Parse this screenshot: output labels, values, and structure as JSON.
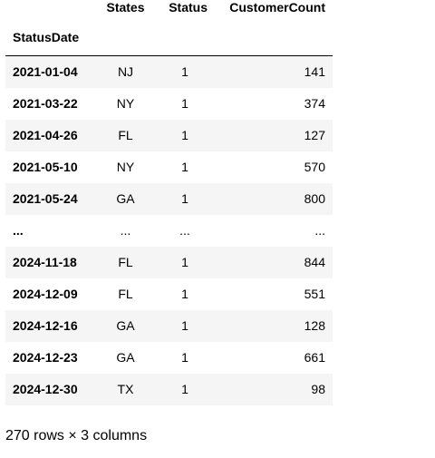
{
  "dataframe": {
    "columns": [
      "States",
      "Status",
      "CustomerCount"
    ],
    "index_name": "StatusDate",
    "rows": [
      {
        "index": "2021-01-04",
        "States": "NJ",
        "Status": "1",
        "CustomerCount": "141"
      },
      {
        "index": "2021-03-22",
        "States": "NY",
        "Status": "1",
        "CustomerCount": "374"
      },
      {
        "index": "2021-04-26",
        "States": "FL",
        "Status": "1",
        "CustomerCount": "127"
      },
      {
        "index": "2021-05-10",
        "States": "NY",
        "Status": "1",
        "CustomerCount": "570"
      },
      {
        "index": "2021-05-24",
        "States": "GA",
        "Status": "1",
        "CustomerCount": "800"
      },
      {
        "index": "...",
        "States": "...",
        "Status": "...",
        "CustomerCount": "..."
      },
      {
        "index": "2024-11-18",
        "States": "FL",
        "Status": "1",
        "CustomerCount": "844"
      },
      {
        "index": "2024-12-09",
        "States": "FL",
        "Status": "1",
        "CustomerCount": "551"
      },
      {
        "index": "2024-12-16",
        "States": "GA",
        "Status": "1",
        "CustomerCount": "128"
      },
      {
        "index": "2024-12-23",
        "States": "GA",
        "Status": "1",
        "CustomerCount": "661"
      },
      {
        "index": "2024-12-30",
        "States": "TX",
        "Status": "1",
        "CustomerCount": "98"
      }
    ],
    "shape_text": "270 rows × 3 columns"
  }
}
